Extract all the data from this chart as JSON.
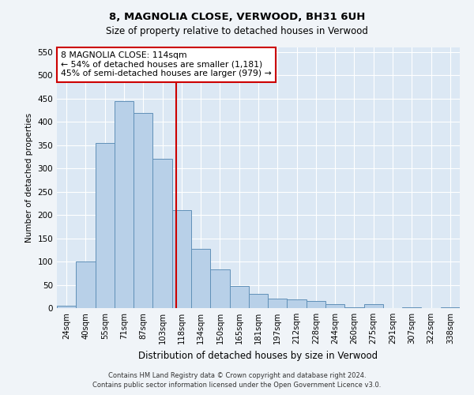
{
  "title1": "8, MAGNOLIA CLOSE, VERWOOD, BH31 6UH",
  "title2": "Size of property relative to detached houses in Verwood",
  "xlabel": "Distribution of detached houses by size in Verwood",
  "ylabel": "Number of detached properties",
  "bar_labels": [
    "24sqm",
    "40sqm",
    "55sqm",
    "71sqm",
    "87sqm",
    "103sqm",
    "118sqm",
    "134sqm",
    "150sqm",
    "165sqm",
    "181sqm",
    "197sqm",
    "212sqm",
    "228sqm",
    "244sqm",
    "260sqm",
    "275sqm",
    "291sqm",
    "307sqm",
    "322sqm",
    "338sqm"
  ],
  "bar_values": [
    5,
    100,
    355,
    445,
    420,
    320,
    210,
    128,
    83,
    47,
    30,
    20,
    18,
    16,
    9,
    2,
    8,
    0,
    2,
    0,
    1
  ],
  "bar_color": "#b8d0e8",
  "bar_edge_color": "#6090b8",
  "annotation_text_line1": "8 MAGNOLIA CLOSE: 114sqm",
  "annotation_text_line2": "← 54% of detached houses are smaller (1,181)",
  "annotation_text_line3": "45% of semi-detached houses are larger (979) →",
  "annotation_box_color": "#ffffff",
  "annotation_box_edge": "#cc0000",
  "vline_color": "#cc0000",
  "ylim": [
    0,
    560
  ],
  "yticks": [
    0,
    50,
    100,
    150,
    200,
    250,
    300,
    350,
    400,
    450,
    500,
    550
  ],
  "footer1": "Contains HM Land Registry data © Crown copyright and database right 2024.",
  "footer2": "Contains public sector information licensed under the Open Government Licence v3.0.",
  "fig_bg": "#f0f4f8",
  "plot_bg": "#dce8f4"
}
